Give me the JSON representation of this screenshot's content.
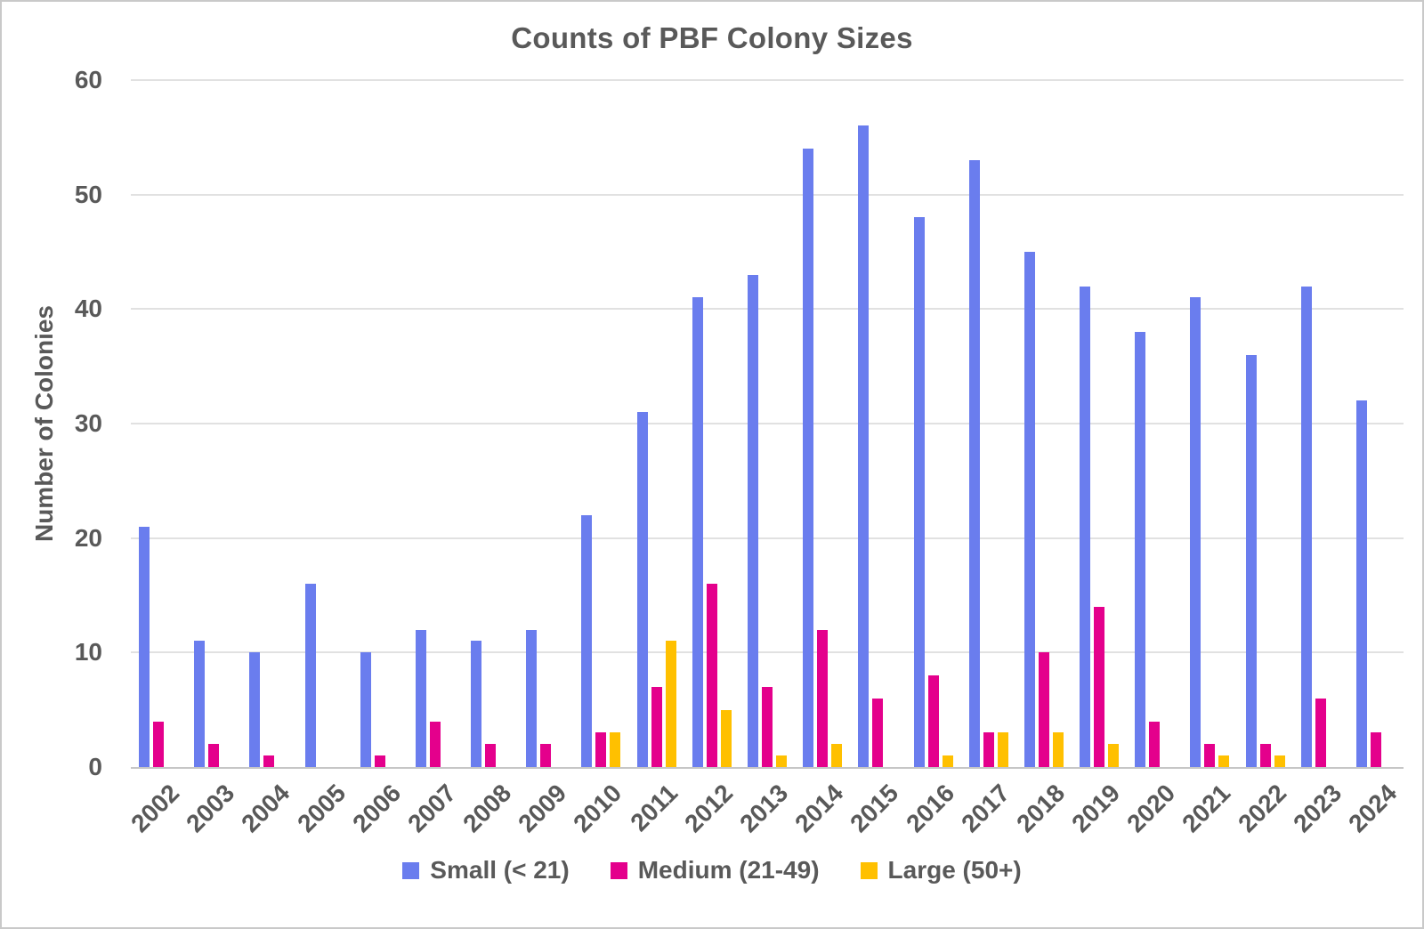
{
  "chart_data": {
    "type": "bar",
    "title": "Counts of PBF Colony Sizes",
    "xlabel": "",
    "ylabel": "Number of Colonies",
    "ylim": [
      0,
      60
    ],
    "yticks": [
      0,
      10,
      20,
      30,
      40,
      50,
      60
    ],
    "grid": true,
    "legend_position": "bottom",
    "categories": [
      "2002",
      "2003",
      "2004",
      "2005",
      "2006",
      "2007",
      "2008",
      "2009",
      "2010",
      "2011",
      "2012",
      "2013",
      "2014",
      "2015",
      "2016",
      "2017",
      "2018",
      "2019",
      "2020",
      "2021",
      "2022",
      "2023",
      "2024"
    ],
    "series": [
      {
        "name": "Small (< 21)",
        "color": "#6a7dee",
        "values": [
          21,
          11,
          10,
          16,
          10,
          12,
          11,
          12,
          22,
          31,
          41,
          43,
          54,
          56,
          48,
          53,
          45,
          42,
          38,
          41,
          36,
          42,
          32
        ]
      },
      {
        "name": "Medium (21-49)",
        "color": "#e4008c",
        "values": [
          4,
          2,
          1,
          0,
          1,
          4,
          2,
          2,
          3,
          7,
          16,
          7,
          12,
          6,
          8,
          3,
          10,
          14,
          4,
          2,
          2,
          6,
          3
        ]
      },
      {
        "name": "Large (50+)",
        "color": "#ffc000",
        "values": [
          0,
          0,
          0,
          0,
          0,
          0,
          0,
          0,
          3,
          11,
          5,
          1,
          2,
          0,
          1,
          3,
          3,
          2,
          0,
          1,
          1,
          0,
          0
        ]
      }
    ]
  }
}
